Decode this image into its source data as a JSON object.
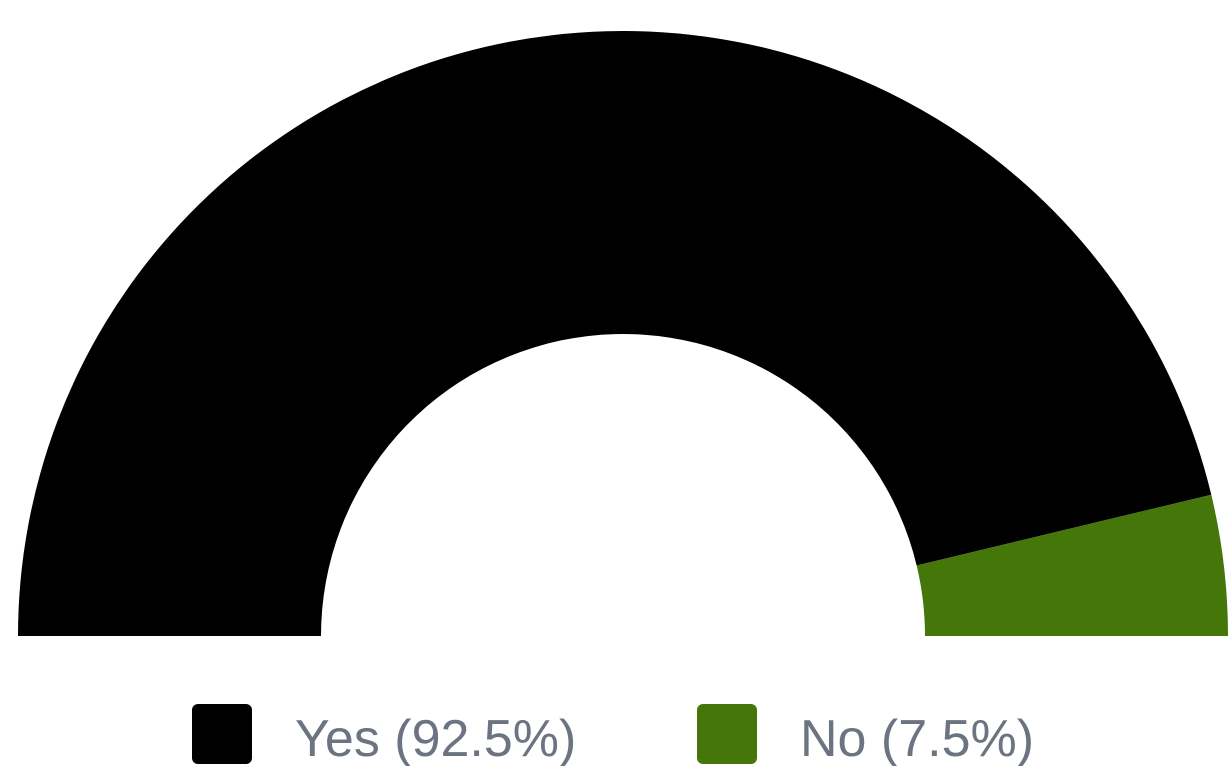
{
  "chart_data": {
    "type": "semi-donut",
    "categories": [
      "Yes (92.5%)",
      "No (7.5%)"
    ],
    "values": [
      92.5,
      7.5
    ],
    "colors": [
      "#000000",
      "#44760a"
    ]
  }
}
